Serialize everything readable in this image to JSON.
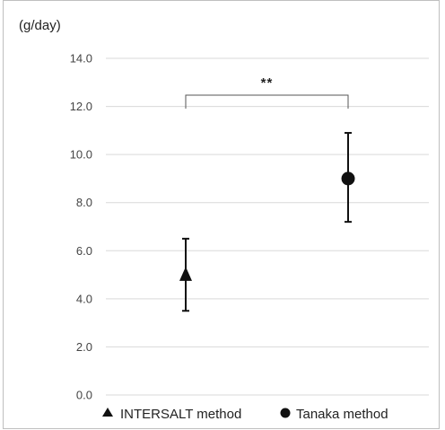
{
  "chart_data": {
    "type": "scatter",
    "unit_label": "(g/day)",
    "ylim": [
      0,
      14
    ],
    "y_ticks": [
      "0.0",
      "2.0",
      "4.0",
      "6.0",
      "8.0",
      "10.0",
      "12.0",
      "14.0"
    ],
    "grid": true,
    "legend_position": "bottom",
    "series": [
      {
        "name": "INTERSALT method",
        "marker": "triangle",
        "value": 5.0,
        "error_low": 3.5,
        "error_high": 6.5
      },
      {
        "name": "Tanaka method",
        "marker": "circle",
        "value": 9.0,
        "error_low": 7.2,
        "error_high": 10.9
      }
    ],
    "significance": "**",
    "colors": {
      "marker": "#111111",
      "grid": "#d9d9d9",
      "border": "#bfbfbf"
    }
  }
}
